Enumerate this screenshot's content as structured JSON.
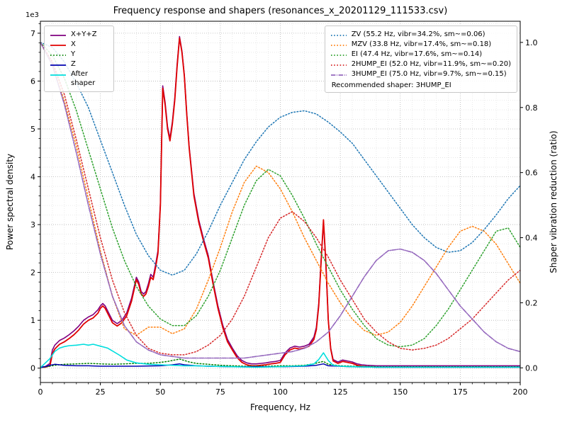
{
  "title": "Frequency response and shapers (resonances_x_20201129_111533.csv)",
  "chart_data": {
    "type": "line",
    "title": "Frequency response and shapers (resonances_x_20201129_111533.csv)",
    "xlabel": "Frequency, Hz",
    "ylabel_left": "Power spectral density",
    "ylabel_right": "Shaper vibration reduction (ratio)",
    "offset_label": "1e3",
    "psd_units": "1e3",
    "xlim": [
      0,
      200
    ],
    "ylim_left": [
      -0.3,
      7.25
    ],
    "ylim_right": [
      -0.045,
      1.065
    ],
    "x_major_ticks": [
      0,
      25,
      50,
      75,
      100,
      125,
      150,
      175,
      200
    ],
    "x_minor_step": 5,
    "y_left_ticks": [
      0,
      1,
      2,
      3,
      4,
      5,
      6,
      7
    ],
    "y_left_minor_step": 0.2,
    "y_right_ticks": [
      0,
      0.2,
      0.4,
      0.6,
      0.8,
      1.0
    ],
    "grid": {
      "major_color": "#b4b4b4",
      "minor_color": "#e0e0e0"
    },
    "recommended_shaper": "3HUMP_EI",
    "psd_series": [
      {
        "name": "X+Y+Z",
        "color": "#800080",
        "style": "solid",
        "width": 1.6,
        "x": [
          0,
          2,
          4,
          5,
          6,
          7,
          8,
          10,
          12,
          14,
          16,
          18,
          20,
          22,
          24,
          25,
          26,
          27,
          28,
          30,
          32,
          34,
          36,
          38,
          40,
          41,
          42,
          43,
          44,
          45,
          46,
          47,
          48,
          49,
          50,
          51,
          52,
          53,
          54,
          55,
          56,
          57,
          58,
          59,
          60,
          61,
          62,
          64,
          66,
          68,
          70,
          72,
          74,
          76,
          78,
          80,
          82,
          84,
          86,
          88,
          90,
          92,
          94,
          96,
          98,
          100,
          102,
          104,
          106,
          108,
          110,
          112,
          114,
          115,
          116,
          117,
          118,
          119,
          120,
          121,
          122,
          124,
          126,
          128,
          130,
          132,
          134,
          136,
          140,
          145,
          150,
          160,
          170,
          180,
          190,
          200
        ],
        "y": [
          0.03,
          0.03,
          0.1,
          0.38,
          0.48,
          0.53,
          0.58,
          0.63,
          0.7,
          0.78,
          0.88,
          1.0,
          1.07,
          1.12,
          1.22,
          1.3,
          1.35,
          1.3,
          1.2,
          1.0,
          0.93,
          1.0,
          1.16,
          1.46,
          1.9,
          1.8,
          1.6,
          1.55,
          1.6,
          1.76,
          1.96,
          1.9,
          2.16,
          2.46,
          3.45,
          5.9,
          5.55,
          5.05,
          4.8,
          5.15,
          5.65,
          6.35,
          6.93,
          6.63,
          6.13,
          5.33,
          4.63,
          3.65,
          3.1,
          2.7,
          2.35,
          1.8,
          1.3,
          0.9,
          0.6,
          0.42,
          0.26,
          0.16,
          0.11,
          0.09,
          0.09,
          0.1,
          0.11,
          0.13,
          0.14,
          0.16,
          0.32,
          0.42,
          0.46,
          0.44,
          0.46,
          0.5,
          0.65,
          0.85,
          1.35,
          2.25,
          3.05,
          2.15,
          1.0,
          0.42,
          0.18,
          0.13,
          0.17,
          0.15,
          0.13,
          0.09,
          0.07,
          0.06,
          0.05,
          0.05,
          0.05,
          0.05,
          0.05,
          0.05,
          0.05,
          0.05
        ]
      },
      {
        "name": "X",
        "color": "#e00000",
        "style": "solid",
        "width": 1.8,
        "x": [
          0,
          2,
          4,
          5,
          6,
          7,
          8,
          10,
          12,
          14,
          16,
          18,
          20,
          22,
          24,
          25,
          26,
          27,
          28,
          30,
          32,
          34,
          36,
          38,
          40,
          41,
          42,
          43,
          44,
          45,
          46,
          47,
          48,
          49,
          50,
          51,
          52,
          53,
          54,
          55,
          56,
          57,
          58,
          59,
          60,
          61,
          62,
          64,
          66,
          68,
          70,
          72,
          74,
          76,
          78,
          80,
          82,
          84,
          86,
          88,
          90,
          92,
          94,
          96,
          98,
          100,
          102,
          104,
          106,
          108,
          110,
          112,
          114,
          115,
          116,
          117,
          118,
          119,
          120,
          121,
          122,
          124,
          126,
          128,
          130,
          132,
          134,
          136,
          140,
          145,
          150,
          160,
          170,
          180,
          190,
          200
        ],
        "y": [
          0.02,
          0.02,
          0.05,
          0.3,
          0.4,
          0.45,
          0.5,
          0.55,
          0.62,
          0.7,
          0.8,
          0.92,
          1.0,
          1.05,
          1.15,
          1.25,
          1.3,
          1.25,
          1.15,
          0.95,
          0.88,
          0.95,
          1.1,
          1.4,
          1.85,
          1.75,
          1.55,
          1.5,
          1.55,
          1.7,
          1.9,
          1.85,
          2.1,
          2.4,
          3.4,
          5.85,
          5.5,
          5.0,
          4.75,
          5.1,
          5.6,
          6.3,
          6.9,
          6.6,
          6.1,
          5.3,
          4.6,
          3.6,
          3.05,
          2.65,
          2.3,
          1.75,
          1.25,
          0.85,
          0.55,
          0.38,
          0.22,
          0.12,
          0.07,
          0.05,
          0.05,
          0.06,
          0.07,
          0.09,
          0.1,
          0.12,
          0.28,
          0.38,
          0.42,
          0.4,
          0.42,
          0.46,
          0.6,
          0.8,
          1.3,
          2.2,
          3.1,
          2.2,
          1.0,
          0.4,
          0.15,
          0.1,
          0.14,
          0.12,
          0.1,
          0.06,
          0.04,
          0.03,
          0.02,
          0.02,
          0.02,
          0.02,
          0.02,
          0.02,
          0.02,
          0.02
        ]
      },
      {
        "name": "Y",
        "color": "#008000",
        "style": "dotted",
        "width": 1.5,
        "x": [
          0,
          4,
          6,
          8,
          10,
          15,
          20,
          25,
          30,
          35,
          40,
          45,
          50,
          53,
          55,
          57,
          58,
          60,
          62,
          65,
          70,
          75,
          80,
          85,
          90,
          95,
          100,
          105,
          110,
          114,
          116,
          118,
          120,
          125,
          130,
          140,
          150,
          160,
          180,
          200
        ],
        "y": [
          0.01,
          0.04,
          0.06,
          0.07,
          0.08,
          0.09,
          0.1,
          0.09,
          0.08,
          0.09,
          0.1,
          0.1,
          0.12,
          0.14,
          0.16,
          0.18,
          0.19,
          0.16,
          0.13,
          0.1,
          0.08,
          0.06,
          0.05,
          0.04,
          0.04,
          0.04,
          0.05,
          0.05,
          0.06,
          0.09,
          0.12,
          0.14,
          0.08,
          0.05,
          0.04,
          0.03,
          0.03,
          0.03,
          0.03,
          0.03
        ]
      },
      {
        "name": "Z",
        "color": "#0000b0",
        "style": "solid",
        "width": 1.5,
        "x": [
          0,
          4,
          6,
          8,
          10,
          15,
          20,
          25,
          30,
          40,
          50,
          55,
          58,
          60,
          65,
          70,
          80,
          90,
          100,
          110,
          115,
          118,
          120,
          130,
          140,
          160,
          180,
          200
        ],
        "y": [
          0.01,
          0.06,
          0.08,
          0.07,
          0.06,
          0.05,
          0.05,
          0.04,
          0.04,
          0.04,
          0.05,
          0.07,
          0.09,
          0.07,
          0.05,
          0.04,
          0.03,
          0.03,
          0.03,
          0.04,
          0.06,
          0.09,
          0.05,
          0.03,
          0.02,
          0.02,
          0.02,
          0.02
        ]
      },
      {
        "name": "After shaper",
        "color": "#00dede",
        "style": "solid",
        "width": 1.6,
        "x": [
          0,
          4,
          6,
          8,
          10,
          12,
          15,
          18,
          20,
          22,
          25,
          28,
          30,
          33,
          36,
          40,
          45,
          50,
          55,
          60,
          65,
          70,
          80,
          90,
          100,
          105,
          110,
          114,
          116,
          118,
          120,
          122,
          125,
          130,
          140,
          150,
          160,
          180,
          200
        ],
        "y": [
          0.01,
          0.2,
          0.35,
          0.42,
          0.45,
          0.47,
          0.48,
          0.5,
          0.48,
          0.5,
          0.46,
          0.42,
          0.36,
          0.27,
          0.17,
          0.11,
          0.08,
          0.07,
          0.06,
          0.05,
          0.05,
          0.04,
          0.03,
          0.02,
          0.03,
          0.04,
          0.05,
          0.09,
          0.18,
          0.32,
          0.16,
          0.06,
          0.04,
          0.03,
          0.02,
          0.02,
          0.02,
          0.02,
          0.02
        ]
      }
    ],
    "shaper_series": [
      {
        "name": "ZV",
        "label": "ZV (55.2 Hz, vibr=34.2%, sm~=0.06)",
        "color": "#1f77b4",
        "style": "dotted",
        "width": 1.5,
        "x": [
          0,
          5,
          10,
          15,
          20,
          25,
          30,
          35,
          40,
          45,
          50,
          55,
          60,
          65,
          70,
          75,
          80,
          85,
          90,
          95,
          100,
          105,
          110,
          115,
          120,
          125,
          130,
          135,
          140,
          145,
          150,
          155,
          160,
          165,
          170,
          175,
          180,
          185,
          190,
          195,
          200
        ],
        "y": [
          1.0,
          0.985,
          0.94,
          0.875,
          0.8,
          0.7,
          0.6,
          0.5,
          0.41,
          0.345,
          0.3,
          0.285,
          0.3,
          0.35,
          0.42,
          0.5,
          0.57,
          0.64,
          0.695,
          0.74,
          0.77,
          0.785,
          0.79,
          0.78,
          0.755,
          0.725,
          0.69,
          0.64,
          0.59,
          0.54,
          0.49,
          0.44,
          0.4,
          0.37,
          0.355,
          0.36,
          0.385,
          0.425,
          0.47,
          0.52,
          0.56
        ]
      },
      {
        "name": "MZV",
        "label": "MZV (33.8 Hz, vibr=17.4%, sm~=0.18)",
        "color": "#ff7f0e",
        "style": "dotted",
        "width": 1.5,
        "x": [
          0,
          5,
          10,
          15,
          20,
          25,
          30,
          35,
          40,
          45,
          50,
          55,
          60,
          65,
          70,
          75,
          80,
          85,
          90,
          95,
          100,
          105,
          110,
          115,
          120,
          125,
          130,
          135,
          140,
          145,
          150,
          155,
          160,
          165,
          170,
          175,
          180,
          185,
          190,
          195,
          200
        ],
        "y": [
          1.0,
          0.93,
          0.82,
          0.68,
          0.52,
          0.36,
          0.22,
          0.12,
          0.1,
          0.125,
          0.125,
          0.105,
          0.12,
          0.18,
          0.27,
          0.37,
          0.48,
          0.57,
          0.62,
          0.6,
          0.55,
          0.48,
          0.4,
          0.33,
          0.26,
          0.2,
          0.15,
          0.115,
          0.1,
          0.11,
          0.14,
          0.19,
          0.25,
          0.31,
          0.37,
          0.42,
          0.435,
          0.42,
          0.38,
          0.32,
          0.26
        ]
      },
      {
        "name": "EI",
        "label": "EI (47.4 Hz, vibr=17.6%, sm~=0.14)",
        "color": "#2ca02c",
        "style": "dotted",
        "width": 1.5,
        "x": [
          0,
          5,
          10,
          15,
          20,
          25,
          30,
          35,
          40,
          45,
          50,
          55,
          60,
          65,
          70,
          75,
          80,
          85,
          90,
          95,
          100,
          105,
          110,
          115,
          120,
          125,
          130,
          135,
          140,
          145,
          150,
          155,
          160,
          165,
          170,
          175,
          180,
          185,
          190,
          195,
          200
        ],
        "y": [
          1.0,
          0.96,
          0.89,
          0.79,
          0.67,
          0.55,
          0.43,
          0.33,
          0.25,
          0.19,
          0.15,
          0.13,
          0.13,
          0.16,
          0.22,
          0.3,
          0.4,
          0.5,
          0.575,
          0.61,
          0.59,
          0.53,
          0.46,
          0.38,
          0.31,
          0.24,
          0.18,
          0.13,
          0.09,
          0.07,
          0.065,
          0.07,
          0.09,
          0.13,
          0.18,
          0.24,
          0.3,
          0.36,
          0.42,
          0.43,
          0.37
        ]
      },
      {
        "name": "2HUMP_EI",
        "label": "2HUMP_EI (52.0 Hz, vibr=11.9%, sm~=0.20)",
        "color": "#d62728",
        "style": "dotted",
        "width": 1.5,
        "x": [
          0,
          5,
          10,
          15,
          20,
          25,
          30,
          35,
          40,
          45,
          50,
          55,
          60,
          65,
          70,
          75,
          80,
          85,
          90,
          95,
          100,
          105,
          110,
          115,
          120,
          125,
          130,
          135,
          140,
          145,
          150,
          155,
          160,
          165,
          170,
          175,
          180,
          185,
          190,
          195,
          200
        ],
        "y": [
          1.0,
          0.94,
          0.84,
          0.7,
          0.55,
          0.4,
          0.27,
          0.17,
          0.1,
          0.06,
          0.045,
          0.04,
          0.04,
          0.05,
          0.07,
          0.1,
          0.15,
          0.22,
          0.31,
          0.4,
          0.46,
          0.48,
          0.45,
          0.4,
          0.34,
          0.27,
          0.21,
          0.15,
          0.11,
          0.08,
          0.06,
          0.055,
          0.06,
          0.07,
          0.09,
          0.12,
          0.15,
          0.19,
          0.23,
          0.27,
          0.3
        ]
      },
      {
        "name": "3HUMP_EI",
        "label": "3HUMP_EI (75.0 Hz, vibr=9.7%, sm~=0.15)",
        "color": "#9467bd",
        "style": "dashdot",
        "width": 1.6,
        "x": [
          0,
          5,
          10,
          15,
          20,
          25,
          30,
          35,
          40,
          45,
          50,
          55,
          60,
          65,
          70,
          75,
          80,
          85,
          90,
          95,
          100,
          105,
          110,
          115,
          120,
          125,
          130,
          135,
          140,
          145,
          150,
          155,
          160,
          165,
          170,
          175,
          180,
          185,
          190,
          195,
          200
        ],
        "y": [
          1.0,
          0.93,
          0.81,
          0.66,
          0.5,
          0.35,
          0.22,
          0.13,
          0.08,
          0.055,
          0.04,
          0.035,
          0.03,
          0.03,
          0.03,
          0.03,
          0.03,
          0.03,
          0.035,
          0.04,
          0.045,
          0.05,
          0.06,
          0.08,
          0.11,
          0.16,
          0.22,
          0.28,
          0.33,
          0.36,
          0.365,
          0.355,
          0.33,
          0.29,
          0.24,
          0.19,
          0.15,
          0.11,
          0.08,
          0.06,
          0.05
        ]
      }
    ],
    "legend_left": [
      {
        "label": "X+Y+Z",
        "color": "#800080",
        "style": "solid"
      },
      {
        "label": "X",
        "color": "#e00000",
        "style": "solid"
      },
      {
        "label": "Y",
        "color": "#008000",
        "style": "dotted"
      },
      {
        "label": "Z",
        "color": "#0000b0",
        "style": "solid"
      },
      {
        "label": "After shaper",
        "color": "#00dede",
        "style": "solid"
      }
    ],
    "legend_right": {
      "entries": [
        {
          "label": "ZV (55.2 Hz, vibr=34.2%, sm~=0.06)",
          "color": "#1f77b4",
          "style": "dotted"
        },
        {
          "label": "MZV (33.8 Hz, vibr=17.4%, sm~=0.18)",
          "color": "#ff7f0e",
          "style": "dotted"
        },
        {
          "label": "EI (47.4 Hz, vibr=17.6%, sm~=0.14)",
          "color": "#2ca02c",
          "style": "dotted"
        },
        {
          "label": "2HUMP_EI (52.0 Hz, vibr=11.9%, sm~=0.20)",
          "color": "#d62728",
          "style": "dotted"
        },
        {
          "label": "3HUMP_EI (75.0 Hz, vibr=9.7%, sm~=0.15)",
          "color": "#9467bd",
          "style": "dashdot"
        }
      ],
      "footer": "Recommended shaper: 3HUMP_EI"
    }
  }
}
